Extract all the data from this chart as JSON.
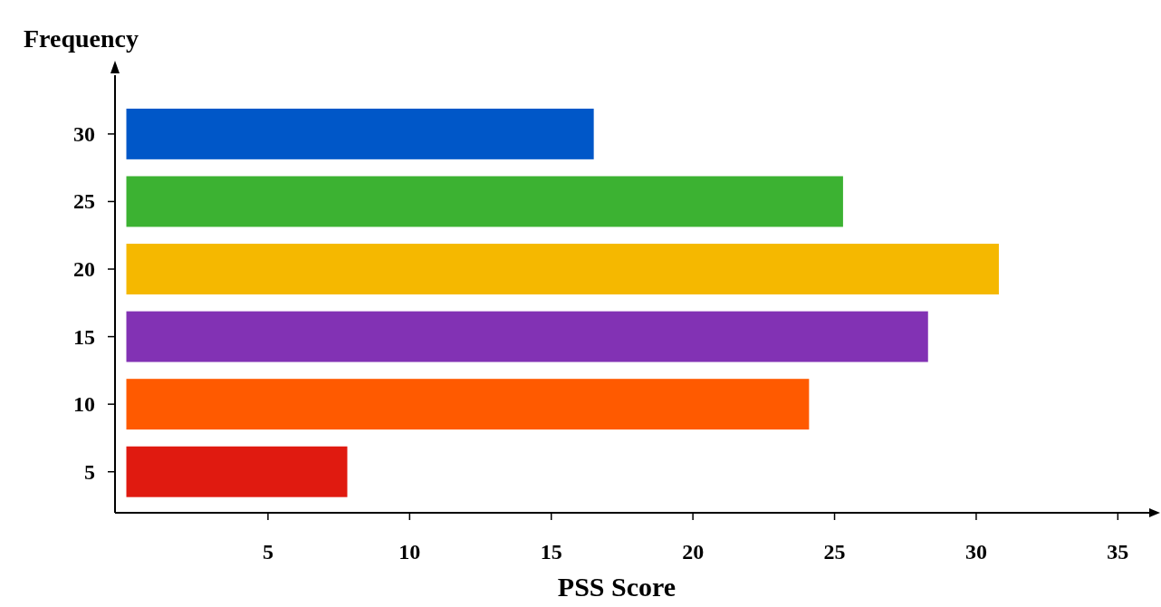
{
  "chart_data": {
    "type": "bar",
    "orientation": "horizontal",
    "ylabel": "Frequency",
    "xlabel": "PSS Score",
    "categories": [
      "30",
      "25",
      "20",
      "15",
      "10",
      "5"
    ],
    "values": [
      16.5,
      25.3,
      30.8,
      28.3,
      24.1,
      7.8
    ],
    "colors": [
      "#0057c8",
      "#3cb232",
      "#f5b800",
      "#8232b4",
      "#ff5a00",
      "#e01a10"
    ],
    "xlim": [
      -0.4,
      36.3
    ],
    "xticks": [
      5,
      10,
      15,
      20,
      25,
      30,
      35
    ]
  }
}
